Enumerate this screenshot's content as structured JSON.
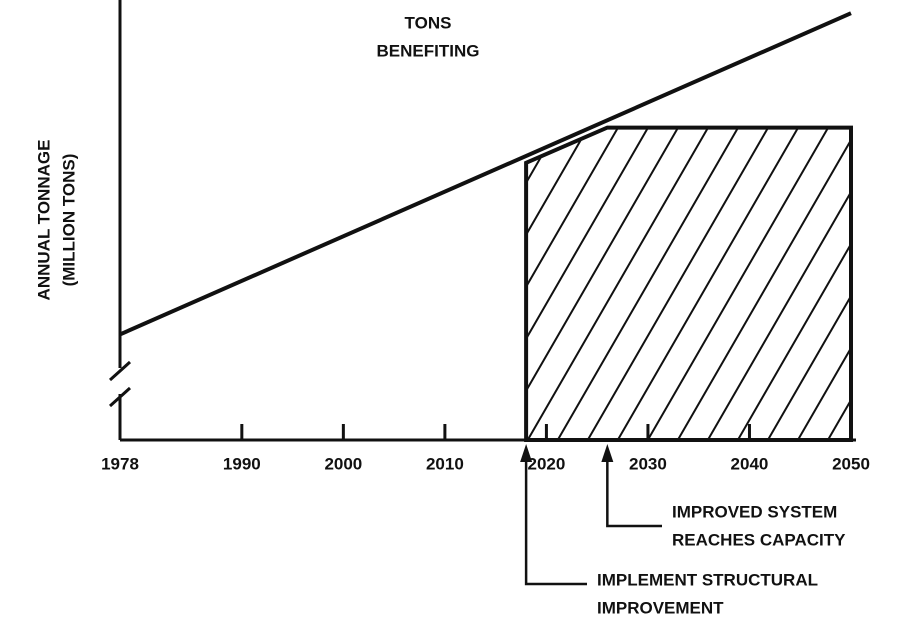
{
  "chart_data": {
    "type": "line",
    "ylabel": [
      "ANNUAL TONNAGE",
      "(MILLION TONS)"
    ],
    "xlim": [
      1978,
      2050
    ],
    "xticks": [
      1978,
      1990,
      2000,
      2010,
      2020,
      2030,
      2040,
      2050
    ],
    "ylim": [
      0,
      100
    ],
    "series": [
      {
        "x": [
          1978,
          2050
        ],
        "values": [
          24,
          97
        ],
        "color": "#111111"
      }
    ],
    "benefit": {
      "x": [
        2018,
        2026,
        2050
      ],
      "values": [
        63,
        71,
        71
      ],
      "color": "#111111"
    },
    "annotations": [
      {
        "text": [
          "TONS",
          "BENEFITING"
        ]
      },
      {
        "x": 2026,
        "text": [
          "IMPROVED SYSTEM",
          "REACHES CAPACITY"
        ]
      },
      {
        "x": 2018,
        "text": [
          "IMPLEMENT STRUCTURAL",
          "IMPROVEMENT"
        ]
      }
    ]
  }
}
